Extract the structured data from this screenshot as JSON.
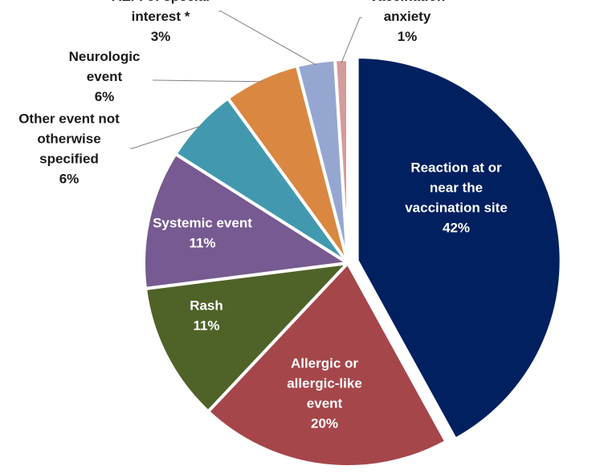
{
  "chart_data": {
    "type": "pie",
    "title": "",
    "slices": [
      {
        "name_lines": [
          "Reaction at or",
          "near the",
          "vaccination site"
        ],
        "value": 42,
        "value_label": "42%",
        "color": "#002060",
        "label_color": "#ffffff",
        "exploded": true
      },
      {
        "name_lines": [
          "Allergic or",
          "allergic-like",
          "event"
        ],
        "value": 20,
        "value_label": "20%",
        "color": "#A5464A",
        "label_color": "#ffffff",
        "exploded": false
      },
      {
        "name_lines": [
          "Rash"
        ],
        "value": 11,
        "value_label": "11%",
        "color": "#4F6228",
        "label_color": "#ffffff",
        "exploded": false
      },
      {
        "name_lines": [
          "Systemic event"
        ],
        "value": 11,
        "value_label": "11%",
        "color": "#765A91",
        "label_color": "#ffffff",
        "exploded": false
      },
      {
        "name_lines": [
          "Other event not",
          "otherwise",
          "specified"
        ],
        "value": 6,
        "value_label": "6%",
        "color": "#4299AF",
        "label_color": "#1a1a1a",
        "exploded": false
      },
      {
        "name_lines": [
          "Neurologic",
          "event"
        ],
        "value": 6,
        "value_label": "6%",
        "color": "#DA8741",
        "label_color": "#1a1a1a",
        "exploded": false
      },
      {
        "name_lines": [
          "AEFI of special",
          "interest *"
        ],
        "value": 3,
        "value_label": "3%",
        "color": "#95A7D1",
        "label_color": "#1a1a1a",
        "exploded": false
      },
      {
        "name_lines": [
          "Vaccination",
          "anxiety"
        ],
        "value": 1,
        "value_label": "1%",
        "color": "#D59B9B",
        "label_color": "#1a1a1a",
        "exploded": false
      }
    ],
    "start_angle_deg": 0,
    "direction": "clockwise"
  }
}
